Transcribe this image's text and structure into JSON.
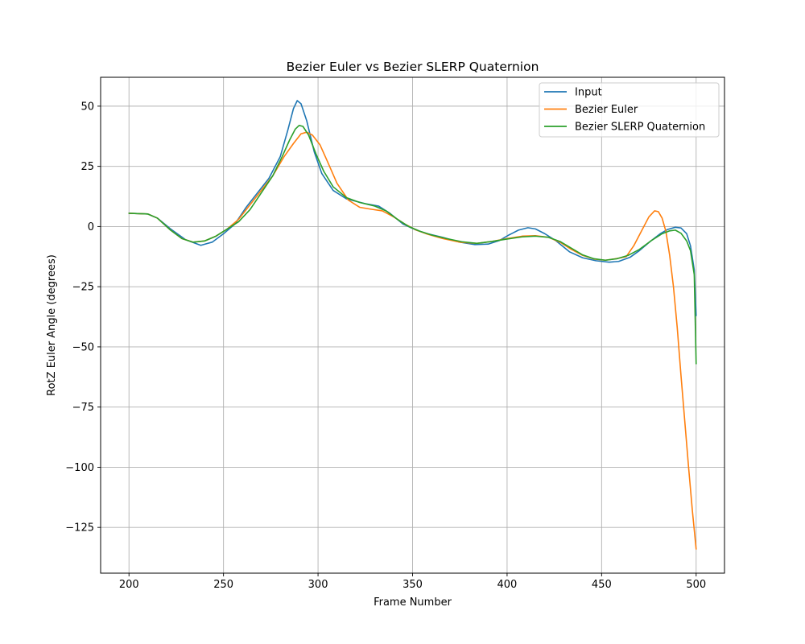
{
  "chart_data": {
    "type": "line",
    "title": "Bezier Euler vs Bezier SLERP Quaternion",
    "xlabel": "Frame Number",
    "ylabel": "RotZ Euler Angle (degrees)",
    "xlim": [
      185,
      515
    ],
    "ylim": [
      -144,
      62
    ],
    "xticks": [
      200,
      250,
      300,
      350,
      400,
      450,
      500
    ],
    "xtick_labels": [
      "200",
      "250",
      "300",
      "350",
      "400",
      "450",
      "500"
    ],
    "yticks": [
      50,
      25,
      0,
      -25,
      -50,
      -75,
      -100,
      -125
    ],
    "ytick_labels": [
      "50",
      "25",
      "0",
      "−25",
      "−50",
      "−75",
      "−100",
      "−125"
    ],
    "grid": true,
    "legend_position": "top-right",
    "series": [
      {
        "name": "Input",
        "color": "#1f77b4",
        "points": [
          [
            200,
            5.5
          ],
          [
            210,
            5.2
          ],
          [
            215,
            3.5
          ],
          [
            222,
            -1
          ],
          [
            230,
            -5.5
          ],
          [
            238,
            -7.8
          ],
          [
            244,
            -6.5
          ],
          [
            250,
            -3
          ],
          [
            256,
            1
          ],
          [
            262,
            8
          ],
          [
            268,
            14
          ],
          [
            274,
            20
          ],
          [
            280,
            29
          ],
          [
            284,
            40
          ],
          [
            287,
            49
          ],
          [
            289,
            52.3
          ],
          [
            291,
            51
          ],
          [
            294,
            44
          ],
          [
            298,
            31
          ],
          [
            302,
            22
          ],
          [
            308,
            15
          ],
          [
            315,
            11.5
          ],
          [
            325,
            9.5
          ],
          [
            332,
            8.5
          ],
          [
            338,
            5.5
          ],
          [
            345,
            1
          ],
          [
            352,
            -1.5
          ],
          [
            358,
            -3
          ],
          [
            366,
            -4.5
          ],
          [
            375,
            -6.5
          ],
          [
            383,
            -7.5
          ],
          [
            390,
            -7.3
          ],
          [
            396,
            -5.8
          ],
          [
            401,
            -3.5
          ],
          [
            406,
            -1.5
          ],
          [
            411,
            -0.5
          ],
          [
            415,
            -1
          ],
          [
            420,
            -3
          ],
          [
            426,
            -6
          ],
          [
            433,
            -10.5
          ],
          [
            440,
            -13
          ],
          [
            447,
            -14.2
          ],
          [
            454,
            -14.8
          ],
          [
            459,
            -14.5
          ],
          [
            465,
            -12.8
          ],
          [
            470,
            -10
          ],
          [
            476,
            -6
          ],
          [
            481,
            -3
          ],
          [
            485,
            -1.2
          ],
          [
            489,
            -0.3
          ],
          [
            492,
            -0.6
          ],
          [
            495,
            -3
          ],
          [
            497,
            -8
          ],
          [
            499,
            -18
          ],
          [
            500,
            -37
          ]
        ]
      },
      {
        "name": "Bezier Euler",
        "color": "#ff7f0e",
        "points": [
          [
            200,
            5.5
          ],
          [
            210,
            5.2
          ],
          [
            215,
            3.5
          ],
          [
            222,
            -1.5
          ],
          [
            228,
            -5
          ],
          [
            234,
            -6.5
          ],
          [
            240,
            -6
          ],
          [
            246,
            -4
          ],
          [
            252,
            -1
          ],
          [
            258,
            3
          ],
          [
            264,
            9
          ],
          [
            270,
            15
          ],
          [
            276,
            21
          ],
          [
            282,
            29
          ],
          [
            287,
            34.5
          ],
          [
            291,
            38.5
          ],
          [
            294,
            39.2
          ],
          [
            297,
            38
          ],
          [
            301,
            34
          ],
          [
            305,
            27
          ],
          [
            310,
            18
          ],
          [
            316,
            11
          ],
          [
            322,
            8
          ],
          [
            328,
            7.2
          ],
          [
            334,
            6.5
          ],
          [
            340,
            4
          ],
          [
            346,
            1
          ],
          [
            352,
            -1.5
          ],
          [
            358,
            -3.2
          ],
          [
            366,
            -5
          ],
          [
            375,
            -6.5
          ],
          [
            384,
            -7
          ],
          [
            392,
            -6.2
          ],
          [
            400,
            -5
          ],
          [
            408,
            -4
          ],
          [
            415,
            -3.8
          ],
          [
            422,
            -4.5
          ],
          [
            428,
            -6.5
          ],
          [
            434,
            -9.5
          ],
          [
            440,
            -12
          ],
          [
            446,
            -13.5
          ],
          [
            452,
            -14
          ],
          [
            458,
            -13.3
          ],
          [
            463,
            -12.5
          ],
          [
            467,
            -8
          ],
          [
            471,
            -2
          ],
          [
            475,
            4
          ],
          [
            478,
            6.5
          ],
          [
            480,
            6.2
          ],
          [
            482,
            3.5
          ],
          [
            484,
            -2
          ],
          [
            486,
            -12
          ],
          [
            488,
            -25
          ],
          [
            490,
            -42
          ],
          [
            492,
            -62
          ],
          [
            494,
            -81
          ],
          [
            496,
            -100
          ],
          [
            498,
            -118
          ],
          [
            500,
            -134
          ]
        ]
      },
      {
        "name": "Bezier SLERP Quaternion",
        "color": "#2ca02c",
        "points": [
          [
            200,
            5.5
          ],
          [
            210,
            5.2
          ],
          [
            215,
            3.5
          ],
          [
            222,
            -1.5
          ],
          [
            228,
            -5
          ],
          [
            234,
            -6.5
          ],
          [
            240,
            -6
          ],
          [
            246,
            -4
          ],
          [
            252,
            -1
          ],
          [
            258,
            2
          ],
          [
            264,
            7
          ],
          [
            270,
            14
          ],
          [
            276,
            21
          ],
          [
            281,
            29
          ],
          [
            285,
            36
          ],
          [
            288,
            40.5
          ],
          [
            290,
            42
          ],
          [
            292,
            41.6
          ],
          [
            295,
            38
          ],
          [
            299,
            30
          ],
          [
            303,
            23
          ],
          [
            308,
            16.5
          ],
          [
            315,
            12
          ],
          [
            322,
            10
          ],
          [
            330,
            8.5
          ],
          [
            336,
            6.5
          ],
          [
            342,
            3
          ],
          [
            348,
            0
          ],
          [
            354,
            -2
          ],
          [
            360,
            -3.5
          ],
          [
            368,
            -5
          ],
          [
            376,
            -6.3
          ],
          [
            384,
            -7
          ],
          [
            392,
            -6.2
          ],
          [
            400,
            -5.2
          ],
          [
            408,
            -4.3
          ],
          [
            415,
            -4
          ],
          [
            422,
            -4.5
          ],
          [
            428,
            -6.2
          ],
          [
            434,
            -9
          ],
          [
            440,
            -11.8
          ],
          [
            446,
            -13.4
          ],
          [
            452,
            -14
          ],
          [
            458,
            -13.4
          ],
          [
            464,
            -12
          ],
          [
            470,
            -9.5
          ],
          [
            476,
            -6
          ],
          [
            482,
            -3
          ],
          [
            486,
            -1.8
          ],
          [
            489,
            -1.5
          ],
          [
            492,
            -2.8
          ],
          [
            495,
            -6
          ],
          [
            497,
            -10
          ],
          [
            499,
            -20
          ],
          [
            500,
            -57
          ]
        ]
      }
    ]
  }
}
